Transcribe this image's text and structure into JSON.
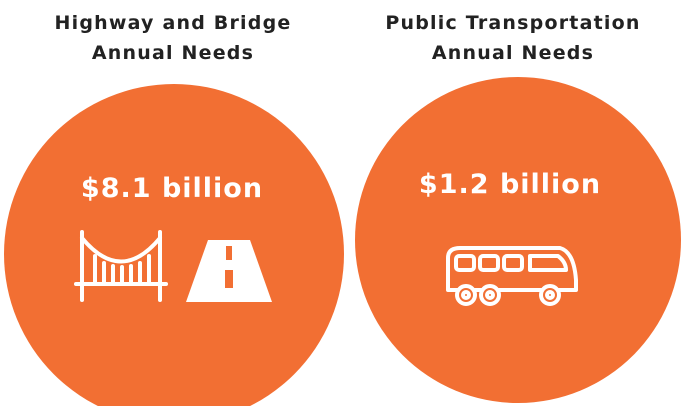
{
  "panels": [
    {
      "title": [
        "Highway and Bridge",
        "Annual Needs"
      ],
      "amount": "$8.1 billion"
    },
    {
      "title": [
        "Public Transportation",
        "Annual Needs"
      ],
      "amount": "$1.2 billion"
    }
  ]
}
